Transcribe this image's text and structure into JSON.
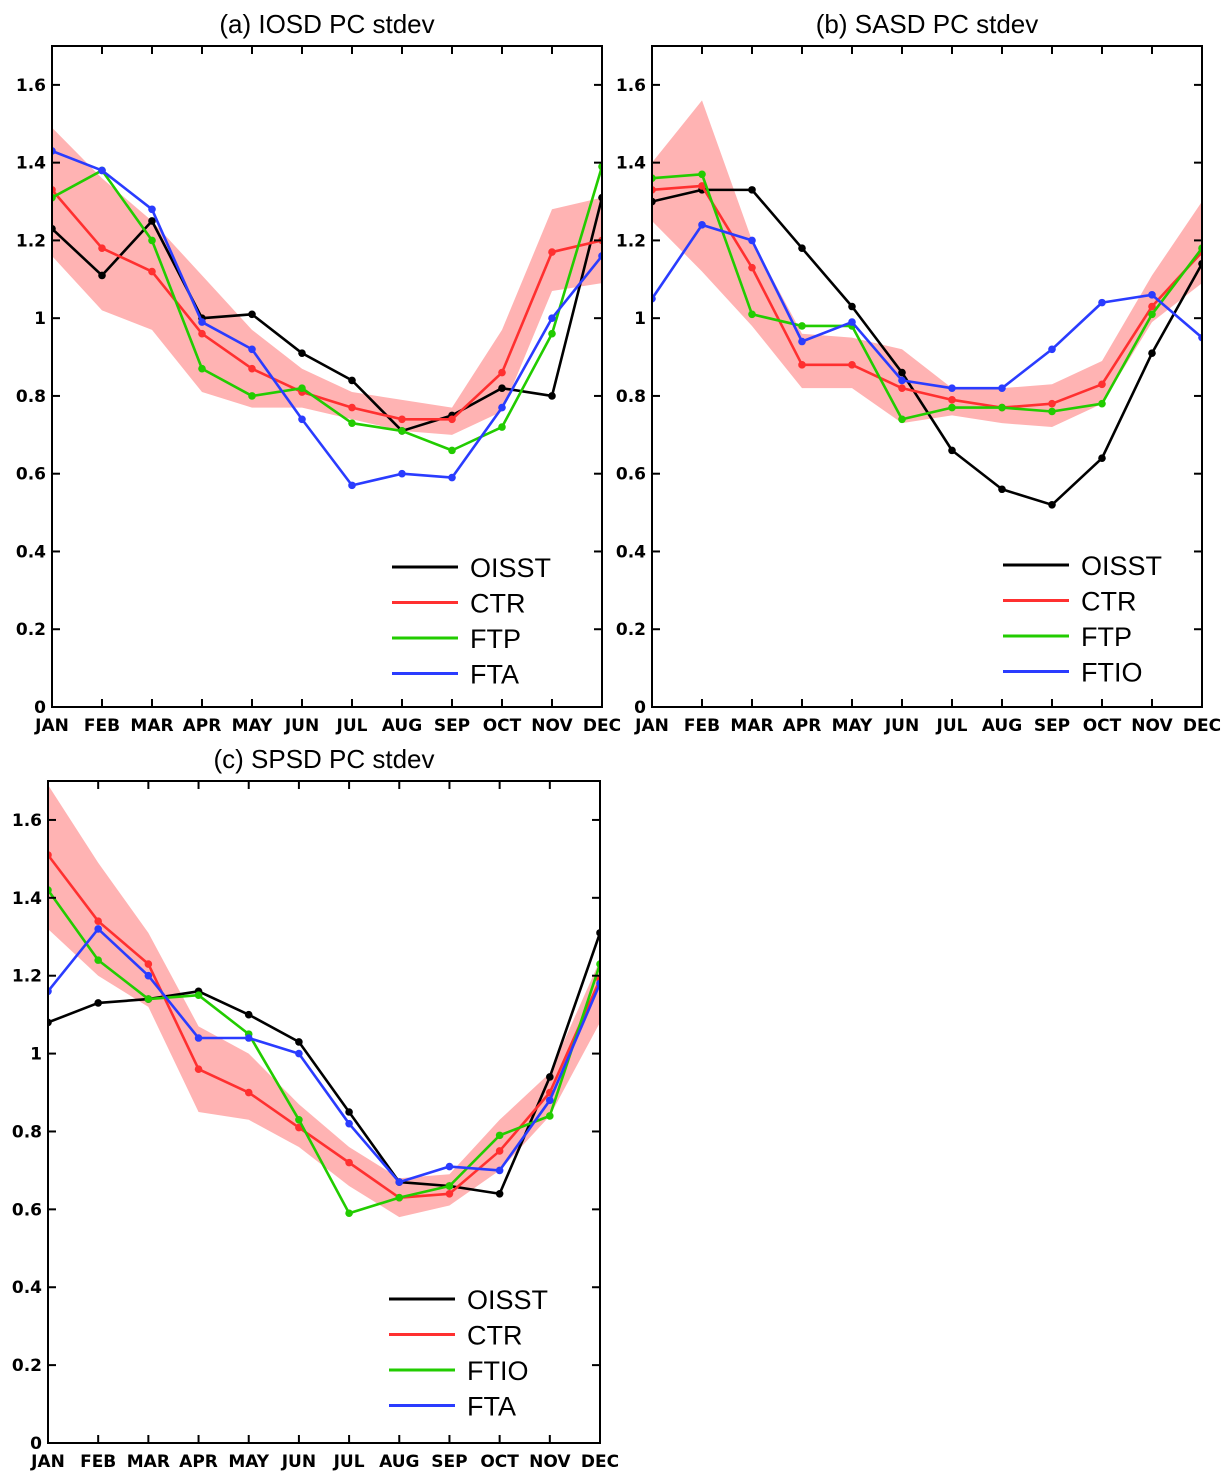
{
  "chart_data": [
    {
      "type": "line",
      "title": "(a) IOSD PC stdev",
      "xlabel": "",
      "ylabel": "",
      "categories": [
        "JAN",
        "FEB",
        "MAR",
        "APR",
        "MAY",
        "JUN",
        "JUL",
        "AUG",
        "SEP",
        "OCT",
        "NOV",
        "DEC"
      ],
      "ylim": [
        0,
        1.7
      ],
      "yticks": [
        0,
        0.2,
        0.4,
        0.6,
        0.8,
        1,
        1.2,
        1.4,
        1.6
      ],
      "ytick_labels": [
        "0",
        "0.2",
        "0.4",
        "0.6",
        "0.8",
        "1",
        "1.2",
        "1.4",
        "1.6"
      ],
      "grid": false,
      "legend_position": "bottom-right",
      "spread_band": {
        "color": "#ffb3b3",
        "upper": [
          1.49,
          1.36,
          1.25,
          1.11,
          0.97,
          0.87,
          0.81,
          0.79,
          0.77,
          0.97,
          1.28,
          1.31
        ],
        "lower": [
          1.16,
          1.02,
          0.97,
          0.81,
          0.77,
          0.77,
          0.74,
          0.71,
          0.7,
          0.76,
          1.07,
          1.09
        ]
      },
      "series": [
        {
          "name": "OISST",
          "color": "#000000",
          "values": [
            1.23,
            1.11,
            1.25,
            1.0,
            1.01,
            0.91,
            0.84,
            0.71,
            0.75,
            0.82,
            0.8,
            1.31
          ]
        },
        {
          "name": "CTR",
          "color": "#ff3030",
          "values": [
            1.33,
            1.18,
            1.12,
            0.96,
            0.87,
            0.81,
            0.77,
            0.74,
            0.74,
            0.86,
            1.17,
            1.2
          ]
        },
        {
          "name": "FTP",
          "color": "#22cc00",
          "values": [
            1.31,
            1.38,
            1.2,
            0.87,
            0.8,
            0.82,
            0.73,
            0.71,
            0.66,
            0.72,
            0.96,
            1.39
          ]
        },
        {
          "name": "FTA",
          "color": "#2a3cff",
          "values": [
            1.43,
            1.38,
            1.28,
            0.99,
            0.92,
            0.74,
            0.57,
            0.6,
            0.59,
            0.77,
            1.0,
            1.16
          ]
        }
      ]
    },
    {
      "type": "line",
      "title": "(b) SASD PC stdev",
      "xlabel": "",
      "ylabel": "",
      "categories": [
        "JAN",
        "FEB",
        "MAR",
        "APR",
        "MAY",
        "JUN",
        "JUL",
        "AUG",
        "SEP",
        "OCT",
        "NOV",
        "DEC"
      ],
      "ylim": [
        0,
        1.7
      ],
      "yticks": [
        0,
        0.2,
        0.4,
        0.6,
        0.8,
        1,
        1.2,
        1.4,
        1.6
      ],
      "ytick_labels": [
        "0",
        "0.2",
        "0.4",
        "0.6",
        "0.8",
        "1",
        "1.2",
        "1.4",
        "1.6"
      ],
      "grid": false,
      "legend_position": "bottom-right",
      "spread_band": {
        "color": "#ffb3b3",
        "upper": [
          1.4,
          1.56,
          1.2,
          0.96,
          0.95,
          0.92,
          0.82,
          0.82,
          0.83,
          0.89,
          1.11,
          1.3
        ],
        "lower": [
          1.25,
          1.12,
          0.98,
          0.82,
          0.82,
          0.73,
          0.75,
          0.73,
          0.72,
          0.78,
          0.99,
          1.09
        ]
      },
      "series": [
        {
          "name": "OISST",
          "color": "#000000",
          "values": [
            1.3,
            1.33,
            1.33,
            1.18,
            1.03,
            0.86,
            0.66,
            0.56,
            0.52,
            0.64,
            0.91,
            1.14
          ]
        },
        {
          "name": "CTR",
          "color": "#ff3030",
          "values": [
            1.33,
            1.34,
            1.13,
            0.88,
            0.88,
            0.82,
            0.79,
            0.77,
            0.78,
            0.83,
            1.03,
            1.17
          ]
        },
        {
          "name": "FTP",
          "color": "#22cc00",
          "values": [
            1.36,
            1.37,
            1.01,
            0.98,
            0.98,
            0.74,
            0.77,
            0.77,
            0.76,
            0.78,
            1.01,
            1.18
          ]
        },
        {
          "name": "FTIO",
          "color": "#2a3cff",
          "values": [
            1.05,
            1.24,
            1.2,
            0.94,
            0.99,
            0.84,
            0.82,
            0.82,
            0.92,
            1.04,
            1.06,
            0.95
          ]
        }
      ]
    },
    {
      "type": "line",
      "title": "(c) SPSD PC stdev",
      "xlabel": "",
      "ylabel": "",
      "categories": [
        "JAN",
        "FEB",
        "MAR",
        "APR",
        "MAY",
        "JUN",
        "JUL",
        "AUG",
        "SEP",
        "OCT",
        "NOV",
        "DEC"
      ],
      "ylim": [
        0,
        1.7
      ],
      "yticks": [
        0,
        0.2,
        0.4,
        0.6,
        0.8,
        1,
        1.2,
        1.4,
        1.6
      ],
      "ytick_labels": [
        "0",
        "0.2",
        "0.4",
        "0.6",
        "0.8",
        "1",
        "1.2",
        "1.4",
        "1.6"
      ],
      "grid": false,
      "legend_position": "bottom-right",
      "spread_band": {
        "color": "#ffb3b3",
        "upper": [
          1.69,
          1.49,
          1.31,
          1.07,
          1.0,
          0.87,
          0.76,
          0.68,
          0.69,
          0.83,
          0.95,
          1.24
        ],
        "lower": [
          1.32,
          1.2,
          1.12,
          0.85,
          0.83,
          0.76,
          0.66,
          0.58,
          0.61,
          0.7,
          0.84,
          1.08
        ]
      },
      "series": [
        {
          "name": "OISST",
          "color": "#000000",
          "values": [
            1.08,
            1.13,
            1.14,
            1.16,
            1.1,
            1.03,
            0.85,
            0.67,
            0.66,
            0.64,
            0.94,
            1.31
          ]
        },
        {
          "name": "CTR",
          "color": "#ff3030",
          "values": [
            1.51,
            1.34,
            1.23,
            0.96,
            0.9,
            0.81,
            0.72,
            0.63,
            0.64,
            0.75,
            0.9,
            1.19
          ]
        },
        {
          "name": "FTIO",
          "color": "#22cc00",
          "values": [
            1.42,
            1.24,
            1.14,
            1.15,
            1.05,
            0.83,
            0.59,
            0.63,
            0.66,
            0.79,
            0.84,
            1.23
          ]
        },
        {
          "name": "FTA",
          "color": "#2a3cff",
          "values": [
            1.16,
            1.32,
            1.2,
            1.04,
            1.04,
            1.0,
            0.82,
            0.67,
            0.71,
            0.7,
            0.88,
            1.18
          ]
        }
      ]
    }
  ]
}
